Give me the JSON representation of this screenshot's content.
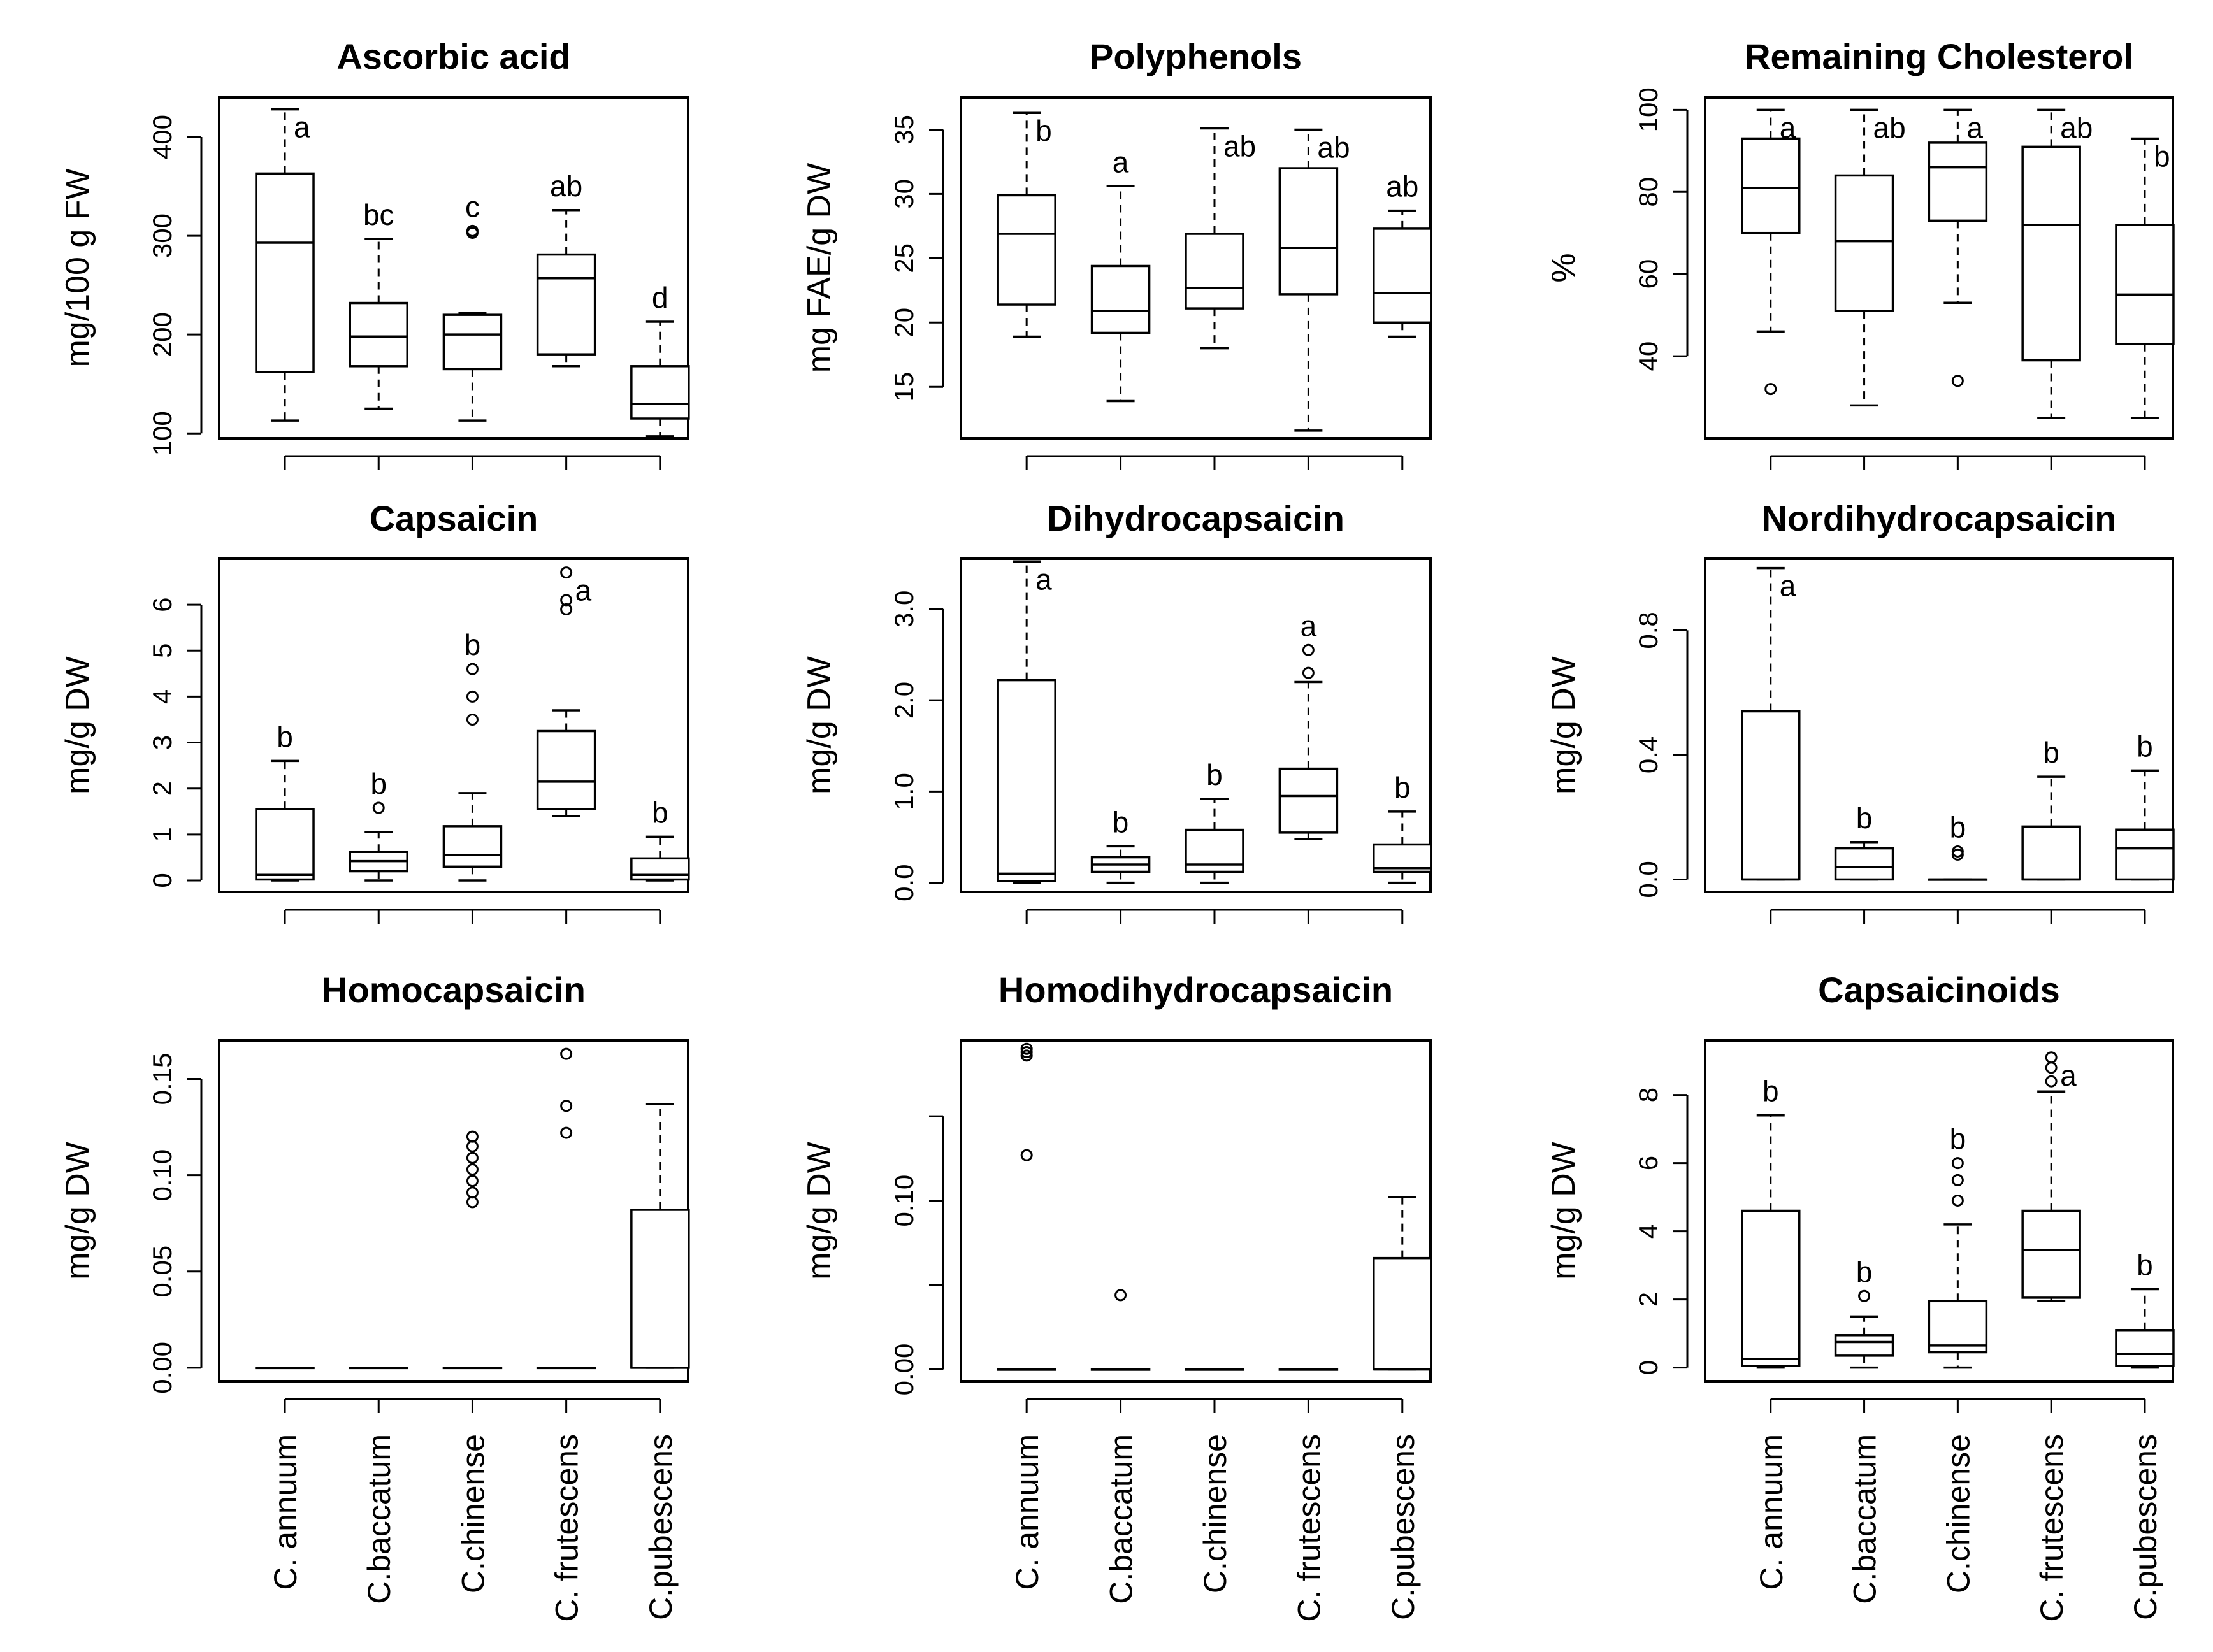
{
  "chart_data": [
    {
      "type": "box",
      "title": "Ascorbic acid",
      "ylabel": "mg/100 g FW",
      "ylim": [
        95,
        440
      ],
      "yticks": [
        100,
        200,
        300,
        400
      ],
      "yticklabels": [
        "100",
        "200",
        "300",
        "400"
      ],
      "categories": [
        "C. annuum",
        "C.baccatum",
        "C.chinense",
        "C. frutescens",
        "C.pubescens"
      ],
      "show_xlabels": false,
      "boxes": [
        {
          "min": 113,
          "q1": 162,
          "median": 293,
          "q3": 363,
          "max": 428,
          "outliers": [],
          "letter": "a"
        },
        {
          "min": 125,
          "q1": 168,
          "median": 198,
          "q3": 232,
          "max": 297,
          "outliers": [],
          "letter": "bc"
        },
        {
          "min": 113,
          "q1": 165,
          "median": 200,
          "q3": 220,
          "max": 222,
          "outliers": [
            303,
            305
          ],
          "letter": "c"
        },
        {
          "min": 168,
          "q1": 180,
          "median": 257,
          "q3": 281,
          "max": 326,
          "outliers": [],
          "letter": "ab"
        },
        {
          "min": 97,
          "q1": 115,
          "median": 130,
          "q3": 168,
          "max": 213,
          "outliers": [],
          "letter": "d"
        }
      ]
    },
    {
      "type": "box",
      "title": "Polyphenols",
      "ylabel": "mg FAE/g DW",
      "ylim": [
        11,
        37.5
      ],
      "yticks": [
        15,
        20,
        25,
        30,
        35
      ],
      "yticklabels": [
        "15",
        "20",
        "25",
        "30",
        "35"
      ],
      "categories": [
        "C. annuum",
        "C.baccatum",
        "C.chinense",
        "C. frutescens",
        "C.pubescens"
      ],
      "show_xlabels": false,
      "boxes": [
        {
          "min": 18.9,
          "q1": 21.4,
          "median": 26.9,
          "q3": 29.9,
          "max": 36.3,
          "outliers": [],
          "letter": "b"
        },
        {
          "min": 13.9,
          "q1": 19.2,
          "median": 20.9,
          "q3": 24.4,
          "max": 30.6,
          "outliers": [],
          "letter": "a"
        },
        {
          "min": 18.0,
          "q1": 21.1,
          "median": 22.7,
          "q3": 26.9,
          "max": 35.1,
          "outliers": [],
          "letter": "ab"
        },
        {
          "min": 11.6,
          "q1": 22.2,
          "median": 25.8,
          "q3": 32.0,
          "max": 35.0,
          "outliers": [],
          "letter": "ab"
        },
        {
          "min": 18.9,
          "q1": 20.0,
          "median": 22.3,
          "q3": 27.3,
          "max": 28.7,
          "outliers": [],
          "letter": "ab"
        }
      ]
    },
    {
      "type": "box",
      "title": "Remaining Cholesterol",
      "ylabel": "%",
      "ylim": [
        20,
        103
      ],
      "yticks": [
        40,
        60,
        80,
        100
      ],
      "yticklabels": [
        "40",
        "60",
        "80",
        "100"
      ],
      "categories": [
        "C. annuum",
        "C.baccatum",
        "C.chinense",
        "C. frutescens",
        "C.pubescens"
      ],
      "show_xlabels": false,
      "boxes": [
        {
          "min": 46,
          "q1": 70,
          "median": 81,
          "q3": 93,
          "max": 100,
          "outliers": [
            32
          ],
          "letter": "a"
        },
        {
          "min": 28,
          "q1": 51,
          "median": 68,
          "q3": 84,
          "max": 100,
          "outliers": [],
          "letter": "ab"
        },
        {
          "min": 53,
          "q1": 73,
          "median": 86,
          "q3": 92,
          "max": 100,
          "outliers": [
            34
          ],
          "letter": "a"
        },
        {
          "min": 25,
          "q1": 39,
          "median": 72,
          "q3": 91,
          "max": 100,
          "outliers": [],
          "letter": "ab"
        },
        {
          "min": 25,
          "q1": 43,
          "median": 55,
          "q3": 72,
          "max": 93,
          "outliers": [],
          "letter": "b"
        }
      ]
    },
    {
      "type": "box",
      "title": "Capsaicin",
      "ylabel": "mg/g DW",
      "ylim": [
        -0.25,
        7.0
      ],
      "yticks": [
        0,
        1,
        2,
        3,
        4,
        5,
        6
      ],
      "yticklabels": [
        "0",
        "1",
        "2",
        "3",
        "4",
        "5",
        "6"
      ],
      "categories": [
        "C. annuum",
        "C.baccatum",
        "C.chinense",
        "C. frutescens",
        "C.pubescens"
      ],
      "show_xlabels": false,
      "boxes": [
        {
          "min": 0,
          "q1": 0.02,
          "median": 0.12,
          "q3": 1.55,
          "max": 2.6,
          "outliers": [],
          "letter": "b"
        },
        {
          "min": 0,
          "q1": 0.2,
          "median": 0.42,
          "q3": 0.62,
          "max": 1.05,
          "outliers": [
            1.58
          ],
          "letter": "b"
        },
        {
          "min": 0,
          "q1": 0.3,
          "median": 0.55,
          "q3": 1.18,
          "max": 1.9,
          "outliers": [
            3.5,
            4.0,
            4.6
          ],
          "letter": "b"
        },
        {
          "min": 1.4,
          "q1": 1.55,
          "median": 2.15,
          "q3": 3.25,
          "max": 3.7,
          "outliers": [
            5.9,
            6.1,
            6.7
          ],
          "letter": "a"
        },
        {
          "min": 0,
          "q1": 0.02,
          "median": 0.12,
          "q3": 0.48,
          "max": 0.95,
          "outliers": [],
          "letter": "b"
        }
      ]
    },
    {
      "type": "box",
      "title": "Dihydrocapsaicin",
      "ylabel": "mg/g DW",
      "ylim": [
        -0.1,
        3.55
      ],
      "yticks": [
        0.0,
        1.0,
        2.0,
        3.0
      ],
      "yticklabels": [
        "0.0",
        "1.0",
        "2.0",
        "3.0"
      ],
      "categories": [
        "C. annuum",
        "C.baccatum",
        "C.chinense",
        "C. frutescens",
        "C.pubescens"
      ],
      "show_xlabels": false,
      "boxes": [
        {
          "min": 0,
          "q1": 0.02,
          "median": 0.1,
          "q3": 2.22,
          "max": 3.52,
          "outliers": [],
          "letter": "a"
        },
        {
          "min": 0,
          "q1": 0.12,
          "median": 0.2,
          "q3": 0.28,
          "max": 0.4,
          "outliers": [],
          "letter": "b"
        },
        {
          "min": 0,
          "q1": 0.12,
          "median": 0.2,
          "q3": 0.58,
          "max": 0.92,
          "outliers": [],
          "letter": "b"
        },
        {
          "min": 0.48,
          "q1": 0.55,
          "median": 0.95,
          "q3": 1.25,
          "max": 2.2,
          "outliers": [
            2.3,
            2.55
          ],
          "letter": "a"
        },
        {
          "min": 0,
          "q1": 0.12,
          "median": 0.16,
          "q3": 0.42,
          "max": 0.78,
          "outliers": [],
          "letter": "b"
        }
      ]
    },
    {
      "type": "box",
      "title": "Nordihydrocapsaicin",
      "ylabel": "mg/g DW",
      "ylim": [
        -0.04,
        1.03
      ],
      "yticks": [
        0.0,
        0.4,
        0.8
      ],
      "yticklabels": [
        "0.0",
        "0.4",
        "0.8"
      ],
      "categories": [
        "C. annuum",
        "C.baccatum",
        "C.chinense",
        "C. frutescens",
        "C.pubescens"
      ],
      "show_xlabels": false,
      "boxes": [
        {
          "min": 0,
          "q1": 0,
          "median": 0,
          "q3": 0.54,
          "max": 1.0,
          "outliers": [],
          "letter": "a"
        },
        {
          "min": 0,
          "q1": 0,
          "median": 0.04,
          "q3": 0.1,
          "max": 0.12,
          "outliers": [],
          "letter": "b"
        },
        {
          "min": 0,
          "q1": 0,
          "median": 0,
          "q3": 0,
          "max": 0,
          "outliers": [
            0.08,
            0.09
          ],
          "letter": "b"
        },
        {
          "min": 0,
          "q1": 0,
          "median": 0,
          "q3": 0.17,
          "max": 0.33,
          "outliers": [],
          "letter": "b"
        },
        {
          "min": 0,
          "q1": 0,
          "median": 0.1,
          "q3": 0.16,
          "max": 0.35,
          "outliers": [],
          "letter": "b"
        }
      ]
    },
    {
      "type": "box",
      "title": "Homocapsaicin",
      "ylabel": "mg/g DW",
      "ylim": [
        -0.007,
        0.17
      ],
      "yticks": [
        0.0,
        0.05,
        0.1,
        0.15
      ],
      "yticklabels": [
        "0.00",
        "0.05",
        "0.10",
        "0.15"
      ],
      "categories": [
        "C. annuum",
        "C.baccatum",
        "C.chinense",
        "C. frutescens",
        "C.pubescens"
      ],
      "show_xlabels": true,
      "boxes": [
        {
          "min": 0,
          "q1": 0,
          "median": 0,
          "q3": 0,
          "max": 0,
          "outliers": [],
          "letter": ""
        },
        {
          "min": 0,
          "q1": 0,
          "median": 0,
          "q3": 0,
          "max": 0,
          "outliers": [],
          "letter": ""
        },
        {
          "min": 0,
          "q1": 0,
          "median": 0,
          "q3": 0,
          "max": 0,
          "outliers": [
            0.086,
            0.091,
            0.097,
            0.103,
            0.109,
            0.115,
            0.12
          ],
          "letter": ""
        },
        {
          "min": 0,
          "q1": 0,
          "median": 0,
          "q3": 0,
          "max": 0,
          "outliers": [
            0.122,
            0.136,
            0.163
          ],
          "letter": ""
        },
        {
          "min": 0,
          "q1": 0,
          "median": 0,
          "q3": 0.082,
          "max": 0.137,
          "outliers": [],
          "letter": ""
        }
      ]
    },
    {
      "type": "box",
      "title": "Homodihydrocapsaicin",
      "ylabel": "mg/g DW",
      "ylim": [
        -0.007,
        0.195
      ],
      "yticks": [
        0.0,
        0.05,
        0.1,
        0.15
      ],
      "yticklabels": [
        "0.00",
        "",
        "0.10",
        ""
      ],
      "categories": [
        "C. annuum",
        "C.baccatum",
        "C.chinense",
        "C. frutescens",
        "C.pubescens"
      ],
      "show_xlabels": true,
      "boxes": [
        {
          "min": 0,
          "q1": 0,
          "median": 0,
          "q3": 0,
          "max": 0,
          "outliers": [
            0.127,
            0.19,
            0.188,
            0.186
          ],
          "letter": ""
        },
        {
          "min": 0,
          "q1": 0,
          "median": 0,
          "q3": 0,
          "max": 0,
          "outliers": [
            0.044
          ],
          "letter": ""
        },
        {
          "min": 0,
          "q1": 0,
          "median": 0,
          "q3": 0,
          "max": 0,
          "outliers": [],
          "letter": ""
        },
        {
          "min": 0,
          "q1": 0,
          "median": 0,
          "q3": 0,
          "max": 0,
          "outliers": [],
          "letter": ""
        },
        {
          "min": 0,
          "q1": 0,
          "median": 0,
          "q3": 0.066,
          "max": 0.102,
          "outliers": [],
          "letter": ""
        }
      ]
    },
    {
      "type": "box",
      "title": "Capsaicinoids",
      "ylabel": "mg/g DW",
      "ylim": [
        -0.4,
        9.6
      ],
      "yticks": [
        0,
        2,
        4,
        6,
        8
      ],
      "yticklabels": [
        "0",
        "2",
        "4",
        "6",
        "8"
      ],
      "categories": [
        "C. annuum",
        "C.baccatum",
        "C.chinense",
        "C. frutescens",
        "C.pubescens"
      ],
      "show_xlabels": true,
      "boxes": [
        {
          "min": 0,
          "q1": 0.05,
          "median": 0.25,
          "q3": 4.6,
          "max": 7.4,
          "outliers": [],
          "letter": "b"
        },
        {
          "min": 0,
          "q1": 0.35,
          "median": 0.75,
          "q3": 0.95,
          "max": 1.5,
          "outliers": [
            2.1
          ],
          "letter": "b"
        },
        {
          "min": 0,
          "q1": 0.45,
          "median": 0.65,
          "q3": 1.95,
          "max": 4.2,
          "outliers": [
            4.9,
            5.5,
            6.0
          ],
          "letter": "b"
        },
        {
          "min": 1.95,
          "q1": 2.05,
          "median": 3.45,
          "q3": 4.6,
          "max": 8.1,
          "outliers": [
            8.4,
            8.8,
            9.1
          ],
          "letter": "a"
        },
        {
          "min": 0,
          "q1": 0.05,
          "median": 0.4,
          "q3": 1.1,
          "max": 2.3,
          "outliers": [],
          "letter": "b"
        }
      ]
    }
  ]
}
